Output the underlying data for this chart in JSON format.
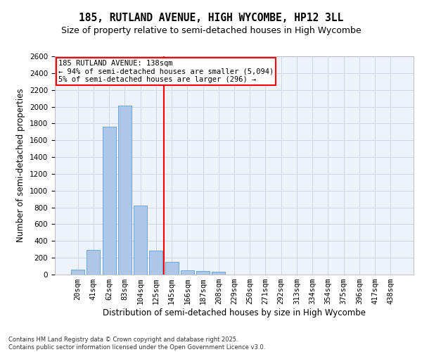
{
  "title_line1": "185, RUTLAND AVENUE, HIGH WYCOMBE, HP12 3LL",
  "title_line2": "Size of property relative to semi-detached houses in High Wycombe",
  "xlabel": "Distribution of semi-detached houses by size in High Wycombe",
  "ylabel": "Number of semi-detached properties",
  "categories": [
    "20sqm",
    "41sqm",
    "62sqm",
    "83sqm",
    "104sqm",
    "125sqm",
    "145sqm",
    "166sqm",
    "187sqm",
    "208sqm",
    "229sqm",
    "250sqm",
    "271sqm",
    "292sqm",
    "313sqm",
    "334sqm",
    "354sqm",
    "375sqm",
    "396sqm",
    "417sqm",
    "438sqm"
  ],
  "bar_values": [
    60,
    295,
    1760,
    2010,
    820,
    285,
    150,
    50,
    45,
    35,
    0,
    0,
    0,
    0,
    0,
    0,
    0,
    0,
    0,
    0,
    0
  ],
  "bar_color": "#aec6e8",
  "bar_edge_color": "#5a9fd4",
  "annotation_line1": "185 RUTLAND AVENUE: 138sqm",
  "annotation_line2": "← 94% of semi-detached houses are smaller (5,094)",
  "annotation_line3": "5% of semi-detached houses are larger (296) →",
  "vline_x_index": 6,
  "vline_color": "red",
  "ylim": [
    0,
    2600
  ],
  "yticks": [
    0,
    200,
    400,
    600,
    800,
    1000,
    1200,
    1400,
    1600,
    1800,
    2000,
    2200,
    2400,
    2600
  ],
  "annotation_box_color": "red",
  "grid_color": "#d0d8e8",
  "background_color": "#eef2fa",
  "footer_text": "Contains HM Land Registry data © Crown copyright and database right 2025.\nContains public sector information licensed under the Open Government Licence v3.0.",
  "title_fontsize": 10.5,
  "subtitle_fontsize": 9,
  "axis_label_fontsize": 8.5,
  "tick_fontsize": 7.5,
  "annotation_fontsize": 7.5,
  "footer_fontsize": 6
}
